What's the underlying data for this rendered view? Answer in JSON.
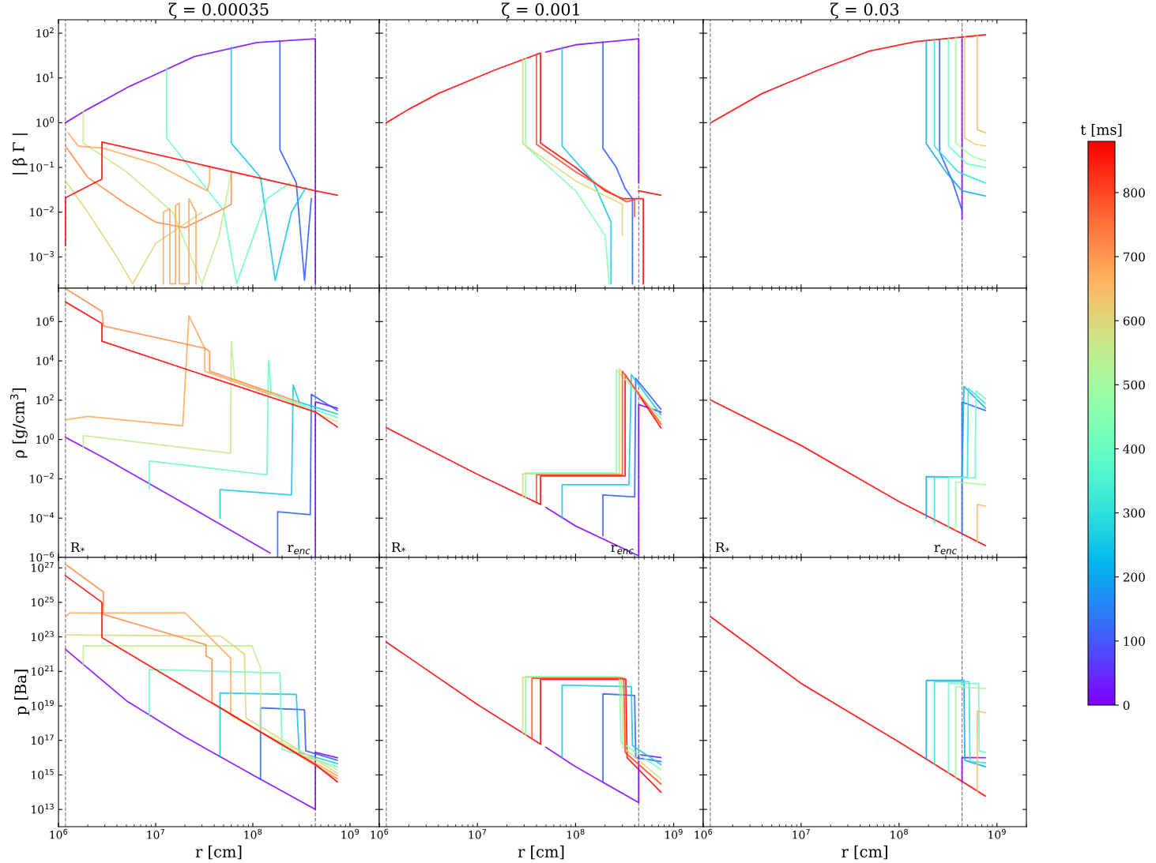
{
  "chart_data": [
    {
      "type": "line",
      "title": "ζ = 0.00035",
      "ylabel": "| β Γ |",
      "log": "xy",
      "tick_labels": "y",
      "xlim": [
        1000000,
        2000000000
      ],
      "ylim": [
        0.0002,
        200
      ],
      "xticks": [
        {
          "value": 1000000,
          "label": null
        },
        {
          "value": 10000000,
          "label": null
        },
        {
          "value": 100000000,
          "label": null
        },
        {
          "value": 1000000000,
          "label": null
        }
      ],
      "yticks": [
        {
          "value": 0.001,
          "label": "10$^{−3}$"
        },
        {
          "value": 0.01,
          "label": "10$^{−2}$"
        },
        {
          "value": 0.1,
          "label": "10$^{−1}$"
        },
        {
          "value": 1,
          "label": "10$^{0}$"
        },
        {
          "value": 10,
          "label": "10$^{1}$"
        },
        {
          "value": 100,
          "label": "10$^{2}$"
        }
      ],
      "ref_lines": [
        {
          "axis": "x",
          "value": 1180000,
          "color": "#808080",
          "line_style": "dashed"
        },
        {
          "axis": "x",
          "value": 440000000,
          "color": "#808080",
          "line_style": "dashed"
        }
      ],
      "series": [
        {
          "color": "#8000ff",
          "x": [
            1180000,
            2000000,
            5400000,
            10000000,
            25000000,
            110000000,
            440000000,
            440000000
          ],
          "values": [
            1,
            2,
            6.5,
            12,
            30,
            62,
            75,
            0.00025
          ]
        },
        {
          "color": "#2d59fb",
          "x": [
            190000000,
            190000000,
            280000000,
            340000000,
            400000000
          ],
          "values": [
            68,
            0.25,
            0.045,
            0.0003,
            0.02
          ]
        },
        {
          "color": "#11c6e6",
          "x": [
            60000000,
            60000000,
            120000000,
            170000000,
            250000000,
            350000000
          ],
          "values": [
            48,
            0.35,
            0.06,
            0.0003,
            0.01,
            0.035
          ]
        },
        {
          "color": "#69fcc1",
          "x": [
            13000000,
            13000000,
            50000000,
            68000000,
            140000000,
            240000000
          ],
          "values": [
            16,
            0.45,
            0.011,
            0.00025,
            0.02,
            0.045
          ]
        },
        {
          "color": "#bfec8e",
          "x": [
            1800000,
            1800000,
            5000000,
            15000000,
            30000000,
            45000000,
            60000000
          ],
          "values": [
            1.8,
            0.35,
            0.08,
            0.01,
            0.00025,
            0.003,
            0.08
          ]
        },
        {
          "color": "#dcd67a",
          "x": [
            1180000,
            2000000,
            4000000,
            5800000,
            10000000,
            30000000
          ],
          "values": [
            0.05,
            0.01,
            0.001,
            0.00025,
            0.002,
            0.01
          ]
        },
        {
          "color": "#ffa759",
          "x": [
            1250000,
            1600000,
            2900000,
            10000000,
            34000000,
            36000000,
            36000000
          ],
          "values": [
            0.6,
            0.3,
            0.27,
            0.12,
            0.03,
            0.05,
            0.1
          ]
        },
        {
          "color": "#ff8a48",
          "x": [
            1180000,
            2000000,
            5000000,
            10000000,
            20000000,
            50000000,
            60000000,
            60000000
          ],
          "values": [
            0.3,
            0.06,
            0.015,
            0.006,
            0.0045,
            0.012,
            0.015,
            0.08
          ]
        },
        {
          "color": "#ffa759",
          "x": [
            12000000,
            12000000,
            14000000,
            14000000,
            16000000,
            16000000,
            17500000,
            17500000,
            22000000,
            22000000,
            26000000,
            26000000
          ],
          "values": [
            0.00025,
            0.01,
            0.012,
            0.00025,
            0.00025,
            0.014,
            0.016,
            0.00025,
            0.00025,
            0.02,
            0.01,
            0.00025
          ]
        },
        {
          "color": "#ff0000",
          "x": [
            1180000,
            1180000,
            2800000,
            2800000,
            440000000,
            740000000
          ],
          "values": [
            0.0018,
            0.021,
            0.055,
            0.37,
            0.03,
            0.024
          ]
        }
      ]
    },
    {
      "type": "line",
      "title": "ζ = 0.001",
      "log": "xy",
      "tick_labels": false,
      "xlim": [
        1000000,
        2000000000
      ],
      "ylim": [
        0.0002,
        200
      ],
      "xticks": [
        {
          "value": 1000000,
          "label": null
        },
        {
          "value": 10000000,
          "label": null
        },
        {
          "value": 100000000,
          "label": null
        },
        {
          "value": 1000000000,
          "label": null
        }
      ],
      "yticks": [
        {
          "value": 0.001,
          "label": null
        },
        {
          "value": 0.01,
          "label": null
        },
        {
          "value": 0.1,
          "label": null
        },
        {
          "value": 1,
          "label": null
        },
        {
          "value": 10,
          "label": null
        },
        {
          "value": 100,
          "label": null
        }
      ],
      "ref_lines": [
        {
          "axis": "x",
          "value": 1180000,
          "color": "#808080",
          "line_style": "dashed"
        },
        {
          "axis": "x",
          "value": 440000000,
          "color": "#808080",
          "line_style": "dashed"
        }
      ],
      "series": [
        {
          "color": "#ff0000",
          "x": [
            1180000,
            2000000,
            4000000,
            15000000,
            44000000,
            44000000,
            100000000,
            200000000,
            300000000,
            490000000,
            490000000
          ],
          "values": [
            1,
            2,
            4.5,
            15,
            36,
            0.35,
            0.1,
            0.03,
            0.02,
            0.02,
            0.00025
          ]
        },
        {
          "color": "#8000ff",
          "x": [
            50000000,
            100000000,
            440000000,
            440000000
          ],
          "values": [
            38,
            55,
            75,
            0.045
          ]
        },
        {
          "color": "#2d59fb",
          "x": [
            190000000,
            190000000,
            260000000,
            320000000,
            380000000,
            380000000
          ],
          "values": [
            64,
            0.27,
            0.1,
            0.034,
            0.02,
            0.00025
          ]
        },
        {
          "color": "#11c6e6",
          "x": [
            73000000,
            73000000,
            150000000,
            230000000,
            230000000
          ],
          "values": [
            48,
            0.3,
            0.05,
            0.006,
            0.00025
          ]
        },
        {
          "color": "#85ffb1",
          "x": [
            31000000,
            31000000,
            100000000,
            200000000,
            220000000
          ],
          "values": [
            28,
            0.3,
            0.03,
            0.003,
            0.00025
          ]
        },
        {
          "color": "#dcd67a",
          "x": [
            29000000,
            29000000,
            100000000,
            300000000,
            300000000
          ],
          "values": [
            27,
            0.34,
            0.05,
            0.015,
            0.003
          ]
        },
        {
          "color": "#ff4824",
          "x": [
            40000000,
            40000000,
            100000000,
            330000000,
            400000000,
            400000000
          ],
          "values": [
            34,
            0.33,
            0.08,
            0.017,
            0.019,
            0.008
          ]
        },
        {
          "color": "#ff0000",
          "x": [
            440000000,
            740000000
          ],
          "values": [
            0.03,
            0.024
          ]
        }
      ]
    },
    {
      "type": "line",
      "title": "ζ = 0.03",
      "log": "xy",
      "tick_labels": false,
      "xlim": [
        1000000,
        2000000000
      ],
      "ylim": [
        0.0002,
        200
      ],
      "xticks": [
        {
          "value": 1000000,
          "label": null
        },
        {
          "value": 10000000,
          "label": null
        },
        {
          "value": 100000000,
          "label": null
        },
        {
          "value": 1000000000,
          "label": null
        }
      ],
      "yticks": [
        {
          "value": 0.001,
          "label": null
        },
        {
          "value": 0.01,
          "label": null
        },
        {
          "value": 0.1,
          "label": null
        },
        {
          "value": 1,
          "label": null
        },
        {
          "value": 10,
          "label": null
        },
        {
          "value": 100,
          "label": null
        }
      ],
      "ref_lines": [
        {
          "axis": "x",
          "value": 1180000,
          "color": "#808080",
          "line_style": "dashed"
        },
        {
          "axis": "x",
          "value": 440000000,
          "color": "#808080",
          "line_style": "dashed"
        }
      ],
      "series": [
        {
          "color": "#ff0000",
          "x": [
            1200000,
            4000000,
            15000000,
            50000000,
            150000000,
            760000000
          ],
          "values": [
            1,
            4.5,
            15,
            40,
            65,
            92
          ]
        },
        {
          "color": "#8000ff",
          "x": [
            440000000,
            440000000
          ],
          "values": [
            75,
            0.007
          ]
        },
        {
          "color": "#2d59fb",
          "x": [
            260000000,
            260000000,
            350000000,
            440000000
          ],
          "values": [
            72,
            0.22,
            0.05,
            0.011
          ]
        },
        {
          "color": "#0ca7ef",
          "x": [
            190000000,
            190000000,
            300000000,
            440000000,
            760000000
          ],
          "values": [
            68,
            0.34,
            0.08,
            0.03,
            0.023
          ]
        },
        {
          "color": "#2edfdc",
          "x": [
            230000000,
            230000000,
            400000000,
            760000000
          ],
          "values": [
            70,
            0.3,
            0.08,
            0.045
          ]
        },
        {
          "color": "#69fcc1",
          "x": [
            320000000,
            320000000,
            500000000,
            760000000
          ],
          "values": [
            75,
            0.3,
            0.12,
            0.1
          ]
        },
        {
          "color": "#a2f9a0",
          "x": [
            380000000,
            380000000,
            550000000,
            760000000
          ],
          "values": [
            78,
            0.35,
            0.18,
            0.14
          ]
        },
        {
          "color": "#dcd67a",
          "x": [
            470000000,
            470000000,
            600000000,
            760000000
          ],
          "values": [
            85,
            0.45,
            0.33,
            0.3
          ]
        },
        {
          "color": "#f9ba66",
          "x": [
            630000000,
            630000000,
            760000000
          ],
          "values": [
            90,
            0.7,
            0.6
          ]
        }
      ]
    },
    {
      "type": "line",
      "ylabel": "ρ [g/cm$^{3}$]",
      "log": "xy",
      "tick_labels": "y",
      "xlim": [
        1000000,
        2000000000
      ],
      "ylim": [
        1e-06,
        50000000
      ],
      "xticks": [
        {
          "value": 1000000,
          "label": null
        },
        {
          "value": 10000000,
          "label": null
        },
        {
          "value": 100000000,
          "label": null
        },
        {
          "value": 1000000000,
          "label": null
        }
      ],
      "yticks": [
        {
          "value": 1e-06,
          "label": "10$^{−6}$"
        },
        {
          "value": 0.0001,
          "label": "10$^{−4}$"
        },
        {
          "value": 0.01,
          "label": "10$^{−2}$"
        },
        {
          "value": 1,
          "label": "10$^{0}$"
        },
        {
          "value": 100,
          "label": "10$^{2}$"
        },
        {
          "value": 10000,
          "label": "10$^{4}$"
        },
        {
          "value": 1000000,
          "label": "10$^{6}$"
        }
      ],
      "ref_lines": [
        {
          "axis": "x",
          "value": 1180000,
          "color": "#808080",
          "line_style": "dashed"
        },
        {
          "axis": "x",
          "value": 440000000,
          "color": "#808080",
          "line_style": "dashed"
        }
      ],
      "annotations": [
        "R$_{*}$",
        "r$_{enc}$"
      ],
      "series": [
        {
          "color": "#8000ff",
          "x": [
            1180000,
            3000000,
            25000000,
            150000000,
            300000000,
            440000000,
            440000000,
            740000000
          ],
          "values": [
            1.3,
            0.11,
            0.00028,
            1.7e-06,
            null,
            1.1e-06,
            83,
            40
          ]
        },
        {
          "color": "#2d59fb",
          "x": [
            180000000,
            180000000,
            390000000,
            400000000,
            740000000
          ],
          "values": [
            1.1e-06,
            0.00021,
            0.00015,
            200,
            30
          ]
        },
        {
          "color": "#11c6e6",
          "x": [
            46000000,
            46000000,
            250000000,
            260000000,
            300000000,
            740000000
          ],
          "values": [
            0.0001,
            0.0028,
            0.0015,
            600,
            80,
            20
          ]
        },
        {
          "color": "#69fcc1",
          "x": [
            8600000,
            8600000,
            140000000,
            145000000,
            155000000,
            740000000
          ],
          "values": [
            0.003,
            0.08,
            0.016,
            11000,
            200,
            13
          ]
        },
        {
          "color": "#bfec8e",
          "x": [
            1800000,
            1800000,
            59000000,
            60000000,
            65000000,
            740000000
          ],
          "values": [
            0.35,
            1.6,
            0.2,
            100000,
            1200,
            8
          ]
        },
        {
          "color": "#ffa759",
          "x": [
            1180000,
            2000000,
            19000000,
            22000000,
            32000000,
            32000000,
            150000000
          ],
          "values": [
            10,
            15,
            5,
            2000000,
            44000,
            3000,
            200
          ]
        },
        {
          "color": "#ff8a48",
          "x": [
            1180000,
            2800000,
            2900000,
            32000000,
            36000000,
            36000000,
            300000000
          ],
          "values": [
            48000000,
            3300000,
            600000,
            44000,
            30000,
            3000,
            80
          ]
        },
        {
          "color": "#ff0000",
          "x": [
            1180000,
            2800000,
            2800000,
            440000000,
            740000000
          ],
          "values": [
            10000000,
            800000,
            100000,
            25,
            4.4
          ]
        }
      ]
    },
    {
      "type": "line",
      "log": "xy",
      "tick_labels": false,
      "xlim": [
        1000000,
        2000000000
      ],
      "ylim": [
        1e-06,
        50000000
      ],
      "xticks": [
        {
          "value": 1000000,
          "label": null
        },
        {
          "value": 10000000,
          "label": null
        },
        {
          "value": 100000000,
          "label": null
        },
        {
          "value": 1000000000,
          "label": null
        }
      ],
      "yticks": [
        {
          "value": 1e-06,
          "label": null
        },
        {
          "value": 0.0001,
          "label": null
        },
        {
          "value": 0.01,
          "label": null
        },
        {
          "value": 1,
          "label": null
        },
        {
          "value": 100,
          "label": null
        },
        {
          "value": 10000,
          "label": null
        },
        {
          "value": 1000000,
          "label": null
        }
      ],
      "ref_lines": [
        {
          "axis": "x",
          "value": 1180000,
          "color": "#808080",
          "line_style": "dashed"
        },
        {
          "axis": "x",
          "value": 440000000,
          "color": "#808080",
          "line_style": "dashed"
        }
      ],
      "annotations": [
        "R$_{*}$",
        "r$_{enc}$"
      ],
      "series": [
        {
          "color": "#ff0000",
          "x": [
            1180000,
            10000000,
            44000000,
            44000000,
            320000000,
            320000000,
            740000000
          ],
          "values": [
            4,
            0.017,
            0.0005,
            0.014,
            0.014,
            2000,
            4
          ]
        },
        {
          "color": "#8000ff",
          "x": [
            50000000,
            100000000,
            440000000,
            440000000,
            740000000
          ],
          "values": [
            0.00035,
            4e-05,
            1.2e-06,
            60,
            25
          ]
        },
        {
          "color": "#2d59fb",
          "x": [
            190000000,
            190000000,
            400000000,
            410000000,
            740000000
          ],
          "values": [
            1.3e-05,
            0.0015,
            0.0012,
            1300,
            35
          ]
        },
        {
          "color": "#11c6e6",
          "x": [
            73000000,
            73000000,
            350000000,
            370000000,
            740000000
          ],
          "values": [
            0.0001,
            0.005,
            0.005,
            2000,
            18
          ]
        },
        {
          "color": "#85ffb1",
          "x": [
            31000000,
            31000000,
            260000000,
            260000000,
            740000000
          ],
          "values": [
            0.001,
            0.02,
            0.02,
            3500,
            12
          ]
        },
        {
          "color": "#dcd67a",
          "x": [
            29000000,
            29000000,
            280000000,
            280000000,
            740000000
          ],
          "values": [
            0.0012,
            0.018,
            0.018,
            4000,
            8
          ]
        },
        {
          "color": "#ff4824",
          "x": [
            40000000,
            40000000,
            300000000,
            300000000,
            740000000
          ],
          "values": [
            0.0007,
            0.016,
            0.016,
            3000,
            6
          ]
        }
      ]
    },
    {
      "type": "line",
      "log": "xy",
      "tick_labels": false,
      "xlim": [
        1000000,
        2000000000
      ],
      "ylim": [
        1e-06,
        50000000
      ],
      "xticks": [
        {
          "value": 1000000,
          "label": null
        },
        {
          "value": 10000000,
          "label": null
        },
        {
          "value": 100000000,
          "label": null
        },
        {
          "value": 1000000000,
          "label": null
        }
      ],
      "yticks": [
        {
          "value": 1e-06,
          "label": null
        },
        {
          "value": 0.0001,
          "label": null
        },
        {
          "value": 0.01,
          "label": null
        },
        {
          "value": 1,
          "label": null
        },
        {
          "value": 100,
          "label": null
        },
        {
          "value": 10000,
          "label": null
        },
        {
          "value": 1000000,
          "label": null
        }
      ],
      "ref_lines": [
        {
          "axis": "x",
          "value": 1180000,
          "color": "#808080",
          "line_style": "dashed"
        },
        {
          "axis": "x",
          "value": 440000000,
          "color": "#808080",
          "line_style": "dashed"
        }
      ],
      "annotations": [
        "R$_{*}$",
        "r$_{enc}$"
      ],
      "series": [
        {
          "color": "#ff0000",
          "x": [
            1200000,
            10000000,
            100000000,
            760000000
          ],
          "values": [
            100,
            0.5,
            0.0007,
            4e-06
          ]
        },
        {
          "color": "#2d59fb",
          "x": [
            440000000,
            440000000,
            760000000
          ],
          "values": [
            1.6e-05,
            80,
            30
          ]
        },
        {
          "color": "#0ca7ef",
          "x": [
            190000000,
            190000000,
            440000000,
            460000000,
            760000000
          ],
          "values": [
            0.0001,
            0.013,
            0.012,
            500,
            40
          ]
        },
        {
          "color": "#2edfdc",
          "x": [
            230000000,
            230000000,
            500000000,
            510000000,
            760000000
          ],
          "values": [
            6e-05,
            0.013,
            0.012,
            400,
            70
          ]
        },
        {
          "color": "#69fcc1",
          "x": [
            320000000,
            320000000,
            600000000,
            610000000,
            760000000
          ],
          "values": [
            3e-05,
            0.012,
            0.011,
            300,
            120
          ]
        },
        {
          "color": "#a2f9a0",
          "x": [
            380000000,
            380000000,
            760000000
          ],
          "values": [
            2.5e-05,
            0.007,
            0.005
          ]
        },
        {
          "color": "#f9ba66",
          "x": [
            630000000,
            630000000,
            760000000
          ],
          "values": [
            6e-06,
            0.0005,
            0.0004
          ]
        }
      ]
    },
    {
      "type": "line",
      "ylabel": "p [Ba]",
      "xlabel": "r [cm]",
      "log": "xy",
      "xlim": [
        1000000,
        2000000000
      ],
      "ylim": [
        1000000000000,
        4e+27
      ],
      "xticks": [
        {
          "value": 1000000,
          "label": "10$^{6}$"
        },
        {
          "value": 10000000,
          "label": "10$^{7}$"
        },
        {
          "value": 100000000,
          "label": "10$^{8}$"
        },
        {
          "value": 1000000000,
          "label": "10$^{9}$"
        }
      ],
      "yticks": [
        {
          "value": 10000000000000.0,
          "label": "10$^{13}$"
        },
        {
          "value": 1000000000000000.0,
          "label": "10$^{15}$"
        },
        {
          "value": 1e+17,
          "label": "10$^{17}$"
        },
        {
          "value": 1e+19,
          "label": "10$^{19}$"
        },
        {
          "value": 1e+21,
          "label": "10$^{21}$"
        },
        {
          "value": 1e+23,
          "label": "10$^{23}$"
        },
        {
          "value": 1e+25,
          "label": "10$^{25}$"
        },
        {
          "value": 1e+27,
          "label": "10$^{27}$"
        }
      ],
      "ref_lines": [
        {
          "axis": "x",
          "value": 1180000,
          "color": "#808080",
          "line_style": "dashed"
        },
        {
          "axis": "x",
          "value": 440000000,
          "color": "#808080",
          "line_style": "dashed"
        }
      ],
      "series": [
        {
          "color": "#8000ff",
          "x": [
            1180000,
            5000000,
            20000000,
            100000000,
            440000000,
            440000000,
            740000000
          ],
          "values": [
            1.9e+22,
            2e+19,
            1.6e+17,
            1000000000000000.0,
            10000000000000.0,
            2e+16,
            1e+16
          ]
        },
        {
          "color": "#2d59fb",
          "x": [
            120000000,
            120000000,
            340000000,
            350000000,
            740000000
          ],
          "values": [
            560000000000000.0,
            7.7e+18,
            6e+18,
            2.5e+16,
            7000000000000000.0
          ]
        },
        {
          "color": "#11c6e6",
          "x": [
            46000000,
            46000000,
            280000000,
            300000000,
            740000000
          ],
          "values": [
            1.1e+16,
            5.6e+19,
            4.6e+19,
            2e+16,
            4500000000000000.0
          ]
        },
        {
          "color": "#69fcc1",
          "x": [
            8600000,
            8600000,
            190000000,
            200000000,
            740000000
          ],
          "values": [
            3e+18,
            1.3e+21,
            8e+20,
            3e+16,
            3000000000000000.0
          ]
        },
        {
          "color": "#bfec8e",
          "x": [
            1800000,
            1800000,
            98000000,
            120000000,
            120000000,
            740000000
          ],
          "values": [
            2.5e+21,
            3e+22,
            3e+22,
            1.6e+21,
            3e+17,
            2000000000000000.0
          ]
        },
        {
          "color": "#dcd67a",
          "x": [
            1180000,
            47000000,
            82000000,
            85000000,
            740000000
          ],
          "values": [
            1.3e+23,
            1.1e+23,
            1e+22,
            2e+18,
            1300000000000000.0
          ]
        },
        {
          "color": "#ffa759",
          "x": [
            1180000,
            1300000,
            20000000,
            59000000,
            59000000,
            740000000
          ],
          "values": [
            1.4e+24,
            2.4e+24,
            2.5e+24,
            6e+21,
            3e+18,
            900000000000000.0
          ]
        },
        {
          "color": "#ff8a48",
          "x": [
            1180000,
            2900000,
            2900000,
            33000000,
            33000000,
            38000000,
            38000000,
            740000000
          ],
          "values": [
            1.6e+27,
            4e+25,
            2e+24,
            3.5e+22,
            8e+21,
            5e+21,
            1.6e+19,
            600000000000000.0
          ]
        },
        {
          "color": "#ff0000",
          "x": [
            1180000,
            2800000,
            2800000,
            440000000,
            740000000
          ],
          "values": [
            3.5e+26,
            1e+25,
            9e+22,
            4000000000000000.0,
            400000000000000.0
          ]
        }
      ]
    },
    {
      "type": "line",
      "xlabel": "r [cm]",
      "log": "xy",
      "tick_labels": "x",
      "xlim": [
        1000000,
        2000000000
      ],
      "ylim": [
        1000000000000,
        4e+27
      ],
      "xticks": [
        {
          "value": 1000000,
          "label": "10$^{6}$"
        },
        {
          "value": 10000000,
          "label": "10$^{7}$"
        },
        {
          "value": 100000000,
          "label": "10$^{8}$"
        },
        {
          "value": 1000000000,
          "label": "10$^{9}$"
        }
      ],
      "yticks": [
        {
          "value": 10000000000000.0,
          "label": null
        },
        {
          "value": 1000000000000000.0,
          "label": null
        },
        {
          "value": 1e+17,
          "label": null
        },
        {
          "value": 1e+19,
          "label": null
        },
        {
          "value": 1e+21,
          "label": null
        },
        {
          "value": 1e+23,
          "label": null
        },
        {
          "value": 1e+25,
          "label": null
        },
        {
          "value": 1e+27,
          "label": null
        }
      ],
      "ref_lines": [
        {
          "axis": "x",
          "value": 1180000,
          "color": "#808080",
          "line_style": "dashed"
        },
        {
          "axis": "x",
          "value": 440000000,
          "color": "#808080",
          "line_style": "dashed"
        }
      ],
      "series": [
        {
          "color": "#ff0000",
          "x": [
            1180000,
            10000000,
            44000000,
            44000000,
            325000000,
            335000000,
            740000000
          ],
          "values": [
            5e+22,
            1.2e+19,
            6e+16,
            3.5e+20,
            3.5e+20,
            1e+16,
            100000000000000.0
          ]
        },
        {
          "color": "#8000ff",
          "x": [
            50000000,
            100000000,
            440000000,
            440000000,
            740000000
          ],
          "values": [
            4e+16,
            3000000000000000.0,
            25000000000000.0,
            1.5e+16,
            1e+16
          ]
        },
        {
          "color": "#2d59fb",
          "x": [
            190000000,
            190000000,
            400000000,
            410000000,
            740000000
          ],
          "values": [
            380000000000000.0,
            5e+19,
            4e+19,
            1e+16,
            6000000000000000.0
          ]
        },
        {
          "color": "#11c6e6",
          "x": [
            73000000,
            73000000,
            370000000,
            380000000,
            740000000
          ],
          "values": [
            1e+16,
            1.6e+20,
            1.3e+20,
            5e+16,
            4000000000000000.0
          ]
        },
        {
          "color": "#85ffb1",
          "x": [
            31000000,
            31000000,
            280000000,
            290000000,
            740000000
          ],
          "values": [
            2e+17,
            5e+20,
            5e+20,
            8e+16,
            2000000000000000.0
          ]
        },
        {
          "color": "#dcd67a",
          "x": [
            29000000,
            29000000,
            295000000,
            305000000,
            740000000
          ],
          "values": [
            2.6e+17,
            4.5e+20,
            4.5e+20,
            4e+16,
            600000000000000.0
          ]
        },
        {
          "color": "#ff4824",
          "x": [
            36000000,
            36000000,
            310000000,
            320000000,
            740000000
          ],
          "values": [
            1.25e+17,
            4e+20,
            4e+20,
            2e+16,
            300000000000000.0
          ]
        }
      ]
    },
    {
      "type": "line",
      "xlabel": "r [cm]",
      "log": "xy",
      "tick_labels": "x",
      "xlim": [
        1000000,
        2000000000
      ],
      "ylim": [
        1000000000000,
        4e+27
      ],
      "xticks": [
        {
          "value": 1000000,
          "label": "10$^{6}$"
        },
        {
          "value": 10000000,
          "label": "10$^{7}$"
        },
        {
          "value": 100000000,
          "label": "10$^{8}$"
        },
        {
          "value": 1000000000,
          "label": "10$^{9}$"
        }
      ],
      "yticks": [
        {
          "value": 10000000000000.0,
          "label": null
        },
        {
          "value": 1000000000000000.0,
          "label": null
        },
        {
          "value": 1e+17,
          "label": null
        },
        {
          "value": 1e+19,
          "label": null
        },
        {
          "value": 1e+21,
          "label": null
        },
        {
          "value": 1e+23,
          "label": null
        },
        {
          "value": 1e+25,
          "label": null
        },
        {
          "value": 1e+27,
          "label": null
        }
      ],
      "ref_lines": [
        {
          "axis": "x",
          "value": 1180000,
          "color": "#808080",
          "line_style": "dashed"
        },
        {
          "axis": "x",
          "value": 440000000,
          "color": "#808080",
          "line_style": "dashed"
        }
      ],
      "clabel": "t [ms]",
      "clim": [
        0,
        880
      ],
      "cticks": [
        0,
        100,
        200,
        300,
        400,
        500,
        600,
        700,
        800
      ],
      "series": [
        {
          "color": "#ff0000",
          "x": [
            1200000,
            10000000,
            100000000,
            760000000
          ],
          "values": [
            1.4e+24,
            2e+20,
            8e+16,
            60000000000000.0
          ]
        },
        {
          "color": "#8000ff",
          "x": [
            440000000,
            440000000,
            760000000
          ],
          "values": [
            400000000000000.0,
            1e+16,
            1e+16
          ]
        },
        {
          "color": "#0ca7ef",
          "x": [
            190000000,
            190000000,
            460000000,
            470000000,
            760000000
          ],
          "values": [
            8000000000000000.0,
            3e+20,
            3e+20,
            7000000000000000.0,
            3000000000000000.0
          ]
        },
        {
          "color": "#2edfdc",
          "x": [
            230000000,
            230000000,
            520000000,
            530000000,
            760000000
          ],
          "values": [
            4000000000000000.0,
            2.5e+20,
            2.5e+20,
            6000000000000000.0,
            5000000000000000.0
          ]
        },
        {
          "color": "#69fcc1",
          "x": [
            320000000,
            320000000,
            650000000,
            660000000,
            760000000
          ],
          "values": [
            1300000000000000.0,
            2e+20,
            2e+20,
            2.5e+16,
            2e+16
          ]
        },
        {
          "color": "#a2f9a0",
          "x": [
            380000000,
            380000000,
            760000000
          ],
          "values": [
            700000000000000.0,
            1.3e+20,
            1e+20
          ]
        },
        {
          "color": "#f9ba66",
          "x": [
            630000000,
            630000000,
            760000000
          ],
          "values": [
            110000000000000.0,
            5e+18,
            4e+18
          ]
        }
      ]
    }
  ]
}
